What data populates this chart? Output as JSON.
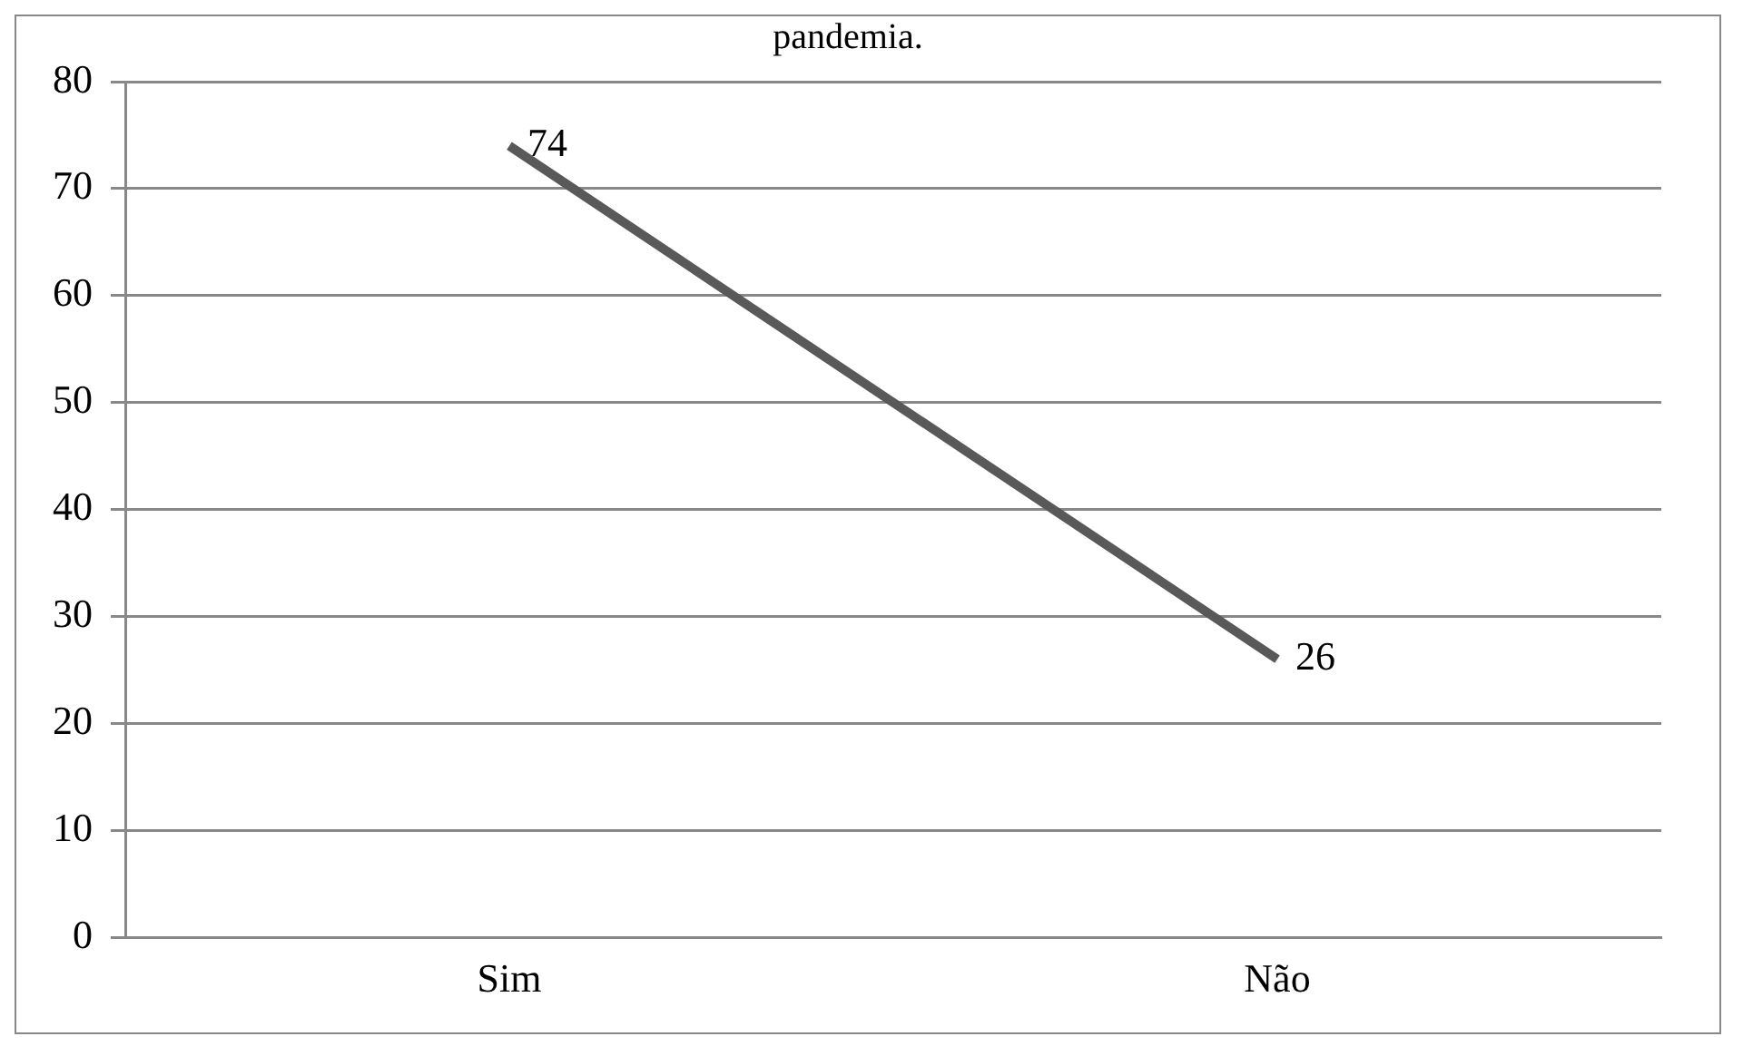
{
  "chart_data": {
    "type": "line",
    "title": "pandemia.",
    "categories": [
      "Sim",
      "Não"
    ],
    "series": [
      {
        "color": "#595959",
        "values": [
          74,
          26
        ]
      }
    ],
    "ylim": [
      0,
      80
    ],
    "yticks": [
      0,
      10,
      20,
      30,
      40,
      50,
      60,
      70,
      80
    ],
    "grid": "y",
    "legend": false,
    "marker": "none",
    "data_labels": true
  }
}
